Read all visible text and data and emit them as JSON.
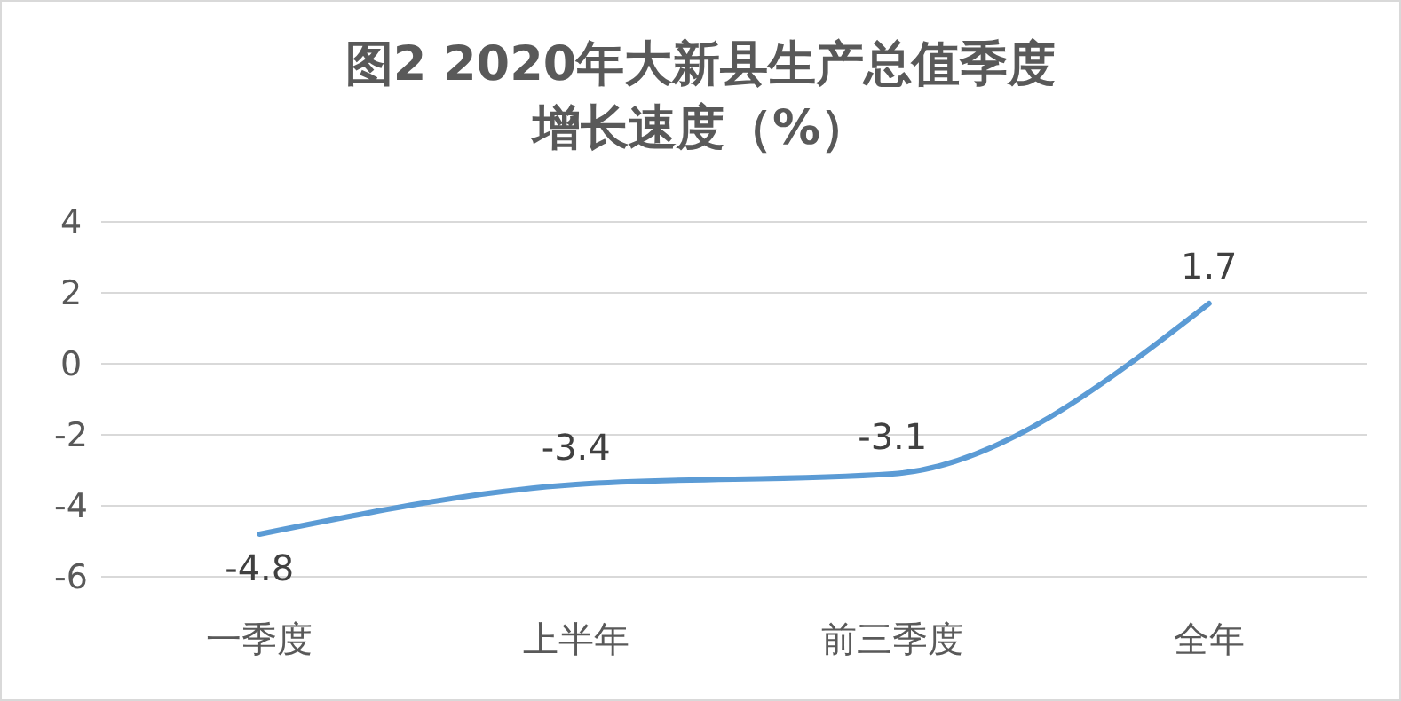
{
  "chart_data": {
    "type": "line",
    "title": "图2 2020年大新县生产总值季度增长速度（%）",
    "categories": [
      "一季度",
      "上半年",
      "前三季度",
      "全年"
    ],
    "series": [
      {
        "color": "#5b9bd5",
        "values": [
          -4.8,
          -3.4,
          -3.1,
          1.7
        ]
      }
    ],
    "ylim": [
      -6,
      4
    ],
    "yticks": [
      -6,
      -4,
      -2,
      0,
      2,
      4
    ],
    "grid": "y",
    "data_labels": true,
    "marker": "none",
    "line_style": "solid"
  }
}
